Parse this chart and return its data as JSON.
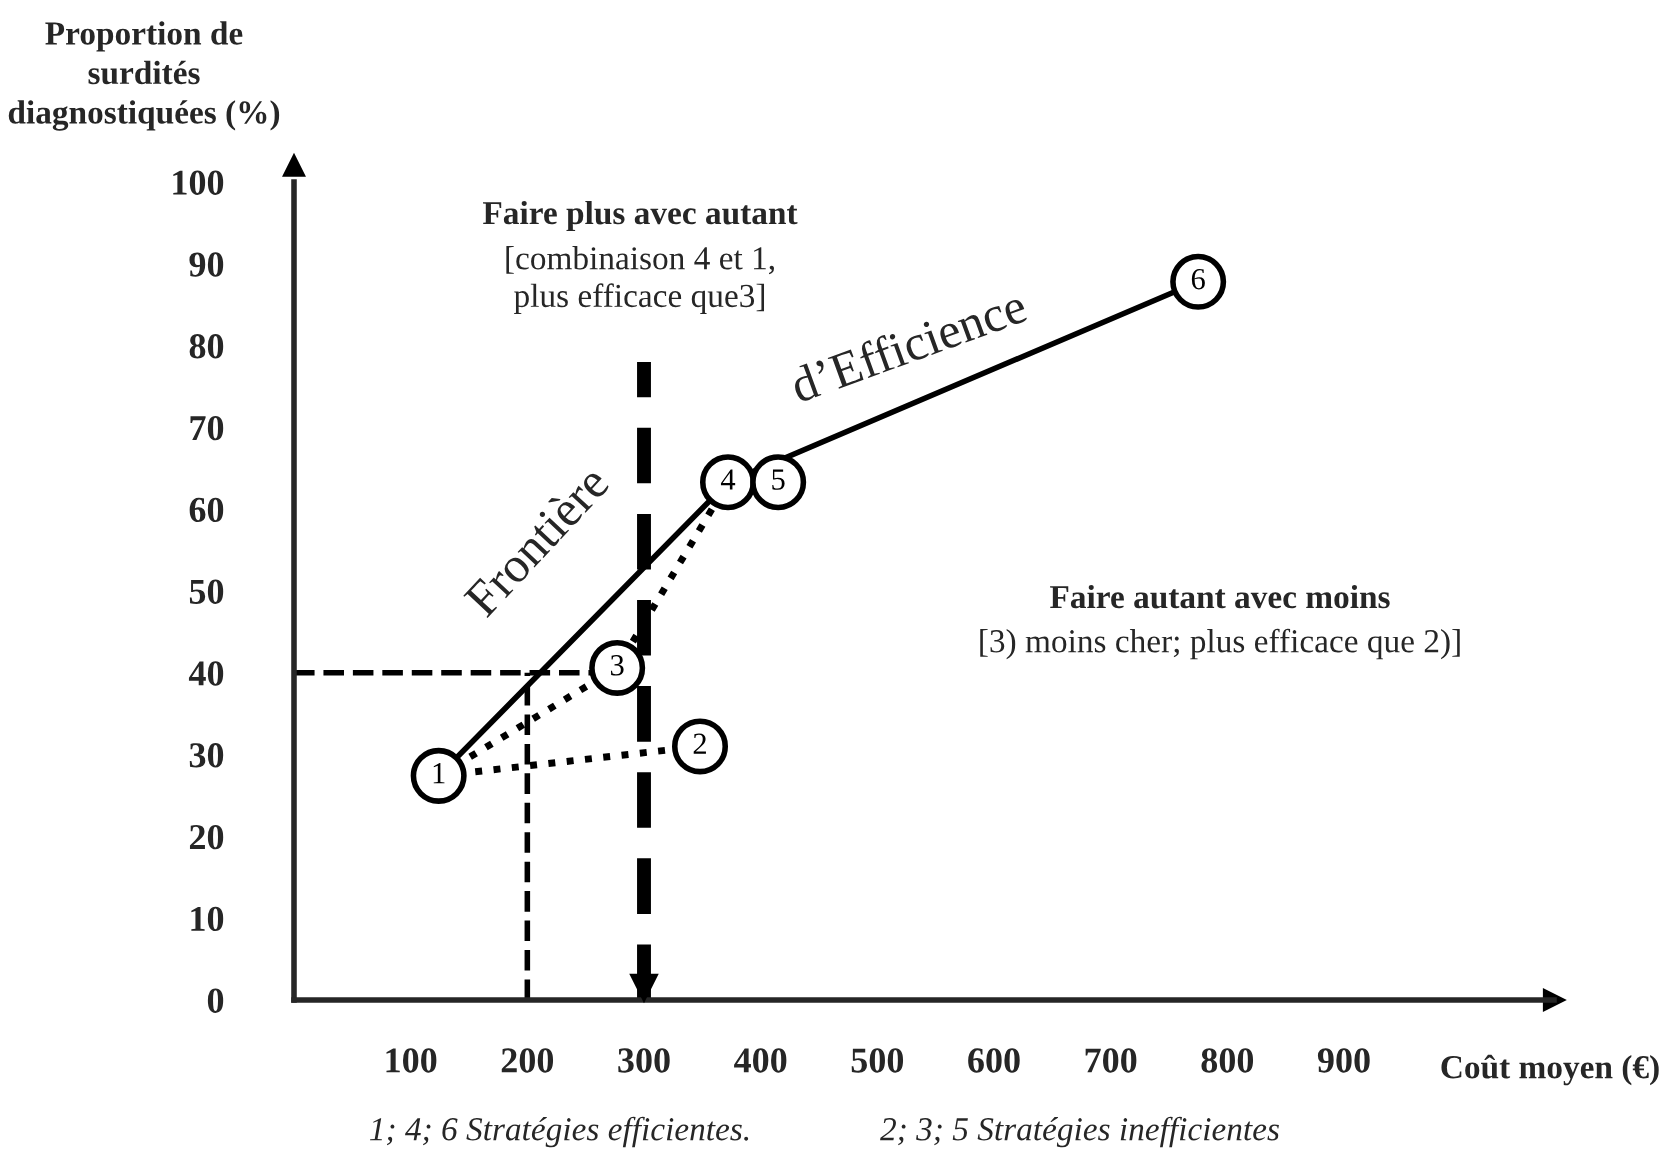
{
  "chart_data": {
    "type": "scatter",
    "ylabel": "Proportion de\nsurdités\ndiagnostiquées (%)",
    "xlabel": "Coût moyen (€)",
    "xlim": [
      0,
      1080
    ],
    "ylim": [
      0,
      100
    ],
    "xticks": [
      100,
      200,
      300,
      400,
      500,
      600,
      700,
      800,
      900
    ],
    "yticks": [
      0,
      10,
      20,
      30,
      40,
      50,
      60,
      70,
      80,
      90,
      100
    ],
    "grid": false,
    "series": [
      {
        "type": "line",
        "x": [
          124,
          372,
          775
        ],
        "values": [
          27.4,
          63.3,
          87.8
        ],
        "color": "#000000",
        "line_style": "solid"
      },
      {
        "type": "line",
        "x": [
          124,
          277,
          372
        ],
        "values": [
          27.4,
          40.6,
          63.3
        ],
        "color": "#000000",
        "line_style": "dotted"
      },
      {
        "type": "line",
        "x": [
          124,
          348
        ],
        "values": [
          27.4,
          31
        ],
        "color": "#000000",
        "line_style": "dotted"
      },
      {
        "x": [
          124,
          348,
          277,
          372,
          415,
          775
        ],
        "values": [
          27.4,
          31,
          40.6,
          63.3,
          63.3,
          87.8
        ],
        "marker": "circle",
        "color": "#000000"
      }
    ],
    "ref_lines": [
      {
        "axis": "x",
        "value": 300,
        "color": "#000000",
        "line_style": "dashed"
      },
      {
        "axis": "y",
        "value": 40,
        "color": "#000000",
        "line_style": "dashed"
      },
      {
        "axis": "x",
        "value": 200,
        "color": "#000000",
        "line_style": "dashed"
      }
    ],
    "annotations": [
      "Faire plus avec autant",
      "[combinaison 4 et 1,\nplus efficace que3]",
      "Faire autant avec moins",
      "[3) moins cher; plus efficace que 2)]",
      "Frontière",
      "d’Efficience",
      "1; 4; 6 Stratégies efficientes.",
      "2; 3; 5 Stratégies inefficientes",
      {
        "text": "1",
        "x": 124,
        "y": 27.4
      },
      {
        "text": "2",
        "x": 348,
        "y": 31
      },
      {
        "text": "3",
        "x": 277,
        "y": 40.6
      },
      {
        "text": "4",
        "x": 372,
        "y": 63.3
      },
      {
        "text": "5",
        "x": 415,
        "y": 63.3
      },
      {
        "text": "6",
        "x": 775,
        "y": 87.8
      }
    ]
  }
}
